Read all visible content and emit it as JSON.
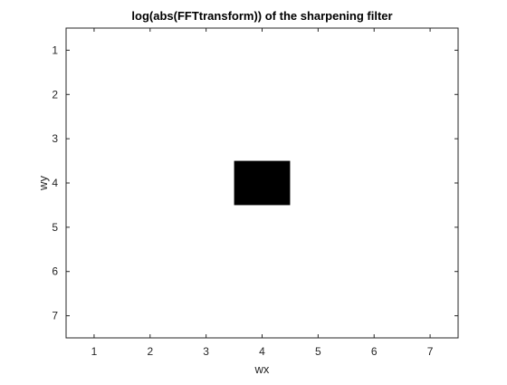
{
  "chart_data": {
    "type": "heatmap",
    "title": "log(abs(FFTtransform)) of the sharpening filter",
    "xlabel": "wx",
    "ylabel": "wy",
    "xlim": [
      0.5,
      7.5
    ],
    "ylim": [
      0.5,
      7.5
    ],
    "y_reversed": true,
    "x_ticks": [
      "1",
      "2",
      "3",
      "4",
      "5",
      "6",
      "7"
    ],
    "y_ticks": [
      "1",
      "2",
      "3",
      "4",
      "5",
      "6",
      "7"
    ],
    "colormap": "gray",
    "cells": [
      {
        "x": 4,
        "y": 4,
        "color": "#000000"
      }
    ],
    "background_color": "#ffffff"
  },
  "colors": {
    "axis": "#262626",
    "text": "#262626",
    "title": "#000000"
  }
}
